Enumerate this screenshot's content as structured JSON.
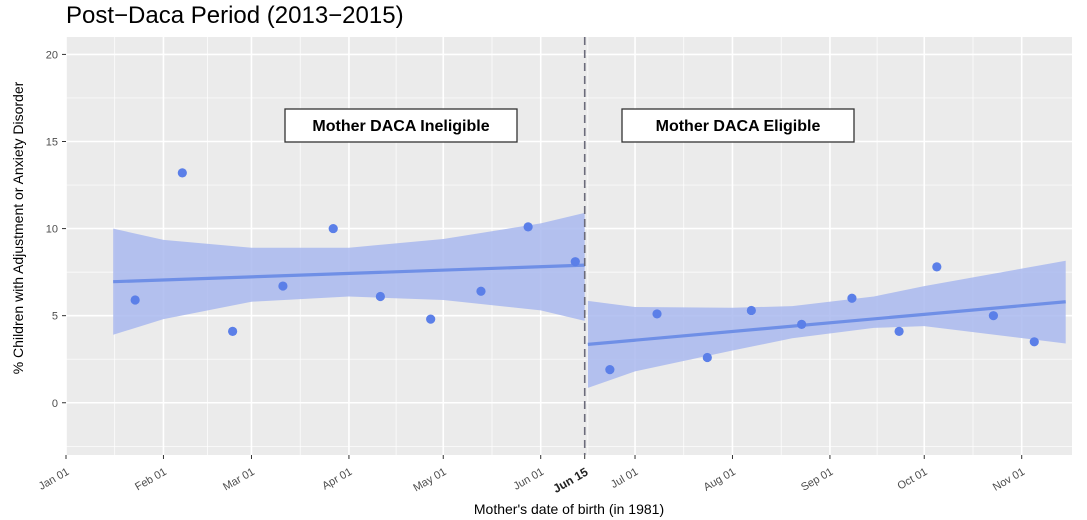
{
  "chart_data": {
    "type": "scatter",
    "title": "Post−Daca Period (2013−2015)",
    "xlabel": "Mother's date of birth (in 1981)",
    "ylabel": "% Children with Adjustment or Anxiety Disorder",
    "xlim": [
      "1981-01-01",
      "1981-11-17"
    ],
    "ylim": [
      -3,
      21
    ],
    "grid": true,
    "x_ticks": [
      {
        "date": "1981-01-01",
        "label": "Jan 01"
      },
      {
        "date": "1981-02-01",
        "label": "Feb 01"
      },
      {
        "date": "1981-03-01",
        "label": "Mar 01"
      },
      {
        "date": "1981-04-01",
        "label": "Apr 01"
      },
      {
        "date": "1981-05-01",
        "label": "May 01"
      },
      {
        "date": "1981-06-01",
        "label": "Jun 01"
      },
      {
        "date": "1981-06-15",
        "label": "Jun 15",
        "bold": true
      },
      {
        "date": "1981-07-01",
        "label": "Jul 01"
      },
      {
        "date": "1981-08-01",
        "label": "Aug 01"
      },
      {
        "date": "1981-09-01",
        "label": "Sep 01"
      },
      {
        "date": "1981-10-01",
        "label": "Oct 01"
      },
      {
        "date": "1981-11-01",
        "label": "Nov 01"
      }
    ],
    "y_ticks": [
      0,
      5,
      10,
      15,
      20
    ],
    "cutoff": "1981-06-15",
    "annotations": [
      "Mother DACA Ineligible",
      "Mother DACA Eligible"
    ],
    "colors": {
      "points": "#5b7fe8",
      "fit_line": "#6f8fe6",
      "ribbon": "#a9b9ef",
      "cutoff_line": "#6b6b7a",
      "panel_bg": "#ebebeb",
      "grid": "#ffffff"
    },
    "series": [
      {
        "points": [
          {
            "x": "1981-01-23",
            "y": 5.9
          },
          {
            "x": "1981-02-07",
            "y": 13.2
          },
          {
            "x": "1981-02-23",
            "y": 4.1
          },
          {
            "x": "1981-03-11",
            "y": 6.7
          },
          {
            "x": "1981-03-27",
            "y": 10.0
          },
          {
            "x": "1981-04-11",
            "y": 6.1
          },
          {
            "x": "1981-04-27",
            "y": 4.8
          },
          {
            "x": "1981-05-13",
            "y": 6.4
          },
          {
            "x": "1981-05-28",
            "y": 10.1
          },
          {
            "x": "1981-06-12",
            "y": 8.1
          }
        ],
        "fit": {
          "x": [
            "1981-01-16",
            "1981-06-15"
          ],
          "y": [
            6.95,
            7.9
          ]
        },
        "ci": [
          {
            "x": "1981-01-16",
            "lo": 3.9,
            "hi": 10.0
          },
          {
            "x": "1981-02-01",
            "lo": 4.8,
            "hi": 9.35
          },
          {
            "x": "1981-03-01",
            "lo": 5.8,
            "hi": 8.9
          },
          {
            "x": "1981-04-01",
            "lo": 6.1,
            "hi": 8.9
          },
          {
            "x": "1981-05-01",
            "lo": 5.9,
            "hi": 9.4
          },
          {
            "x": "1981-06-01",
            "lo": 5.3,
            "hi": 10.3
          },
          {
            "x": "1981-06-15",
            "lo": 4.7,
            "hi": 10.9
          }
        ]
      },
      {
        "points": [
          {
            "x": "1981-06-23",
            "y": 1.9
          },
          {
            "x": "1981-07-08",
            "y": 5.1
          },
          {
            "x": "1981-07-24",
            "y": 2.6
          },
          {
            "x": "1981-08-07",
            "y": 5.3
          },
          {
            "x": "1981-08-23",
            "y": 4.5
          },
          {
            "x": "1981-09-08",
            "y": 6.0
          },
          {
            "x": "1981-09-23",
            "y": 4.1
          },
          {
            "x": "1981-10-05",
            "y": 7.8
          },
          {
            "x": "1981-10-23",
            "y": 5.0
          },
          {
            "x": "1981-11-05",
            "y": 3.5
          }
        ],
        "fit": {
          "x": [
            "1981-06-16",
            "1981-11-15"
          ],
          "y": [
            3.35,
            5.8
          ]
        },
        "ci": [
          {
            "x": "1981-06-16",
            "lo": 0.85,
            "hi": 5.85
          },
          {
            "x": "1981-07-01",
            "lo": 1.8,
            "hi": 5.5
          },
          {
            "x": "1981-08-01",
            "lo": 3.0,
            "hi": 5.45
          },
          {
            "x": "1981-08-20",
            "lo": 3.7,
            "hi": 5.55
          },
          {
            "x": "1981-09-15",
            "lo": 4.3,
            "hi": 6.1
          },
          {
            "x": "1981-10-01",
            "lo": 4.4,
            "hi": 6.7
          },
          {
            "x": "1981-11-15",
            "lo": 3.4,
            "hi": 8.15
          }
        ]
      }
    ]
  }
}
